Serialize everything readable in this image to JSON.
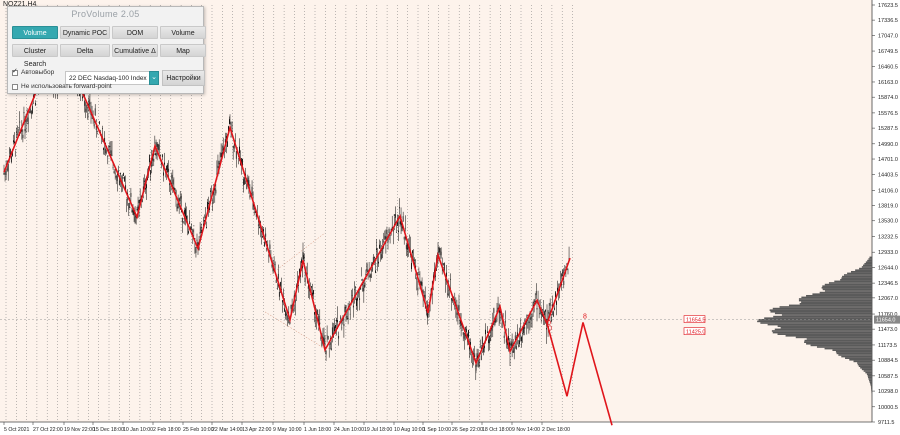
{
  "symbol": "NQZ21,H4",
  "panel": {
    "title": "ProVolume 2.05",
    "buttons": [
      "Volume Profile",
      "Dynamic POC",
      "DOM",
      "Volume",
      "Cluster Search",
      "Delta",
      "Cumulative Δ",
      "Map"
    ],
    "active_button": "Volume Profile",
    "auto_select_label": "Автовыбор",
    "auto_select_checked": true,
    "instrument": "22 DEC Nasdaq-100 Index",
    "settings_label": "Настройки",
    "forward_point_label": "Не использовать forward-point",
    "forward_point_checked": false
  },
  "chart_data": {
    "type": "line",
    "title": "",
    "price_labels": [
      "17623.5",
      "17336.5",
      "17047.0",
      "16749.5",
      "16460.5",
      "16163.0",
      "15874.0",
      "15576.5",
      "15287.5",
      "14990.0",
      "14701.0",
      "14403.5",
      "14106.0",
      "13819.0",
      "13530.0",
      "13232.5",
      "12933.0",
      "12644.0",
      "12346.5",
      "12067.0",
      "11760.0",
      "11473.0",
      "11173.5",
      "10884.5",
      "10587.5",
      "10298.0",
      "10000.5",
      "9711.5"
    ],
    "ylim": [
      9711.5,
      17623.5
    ],
    "date_labels": [
      "5 Oct 2021",
      "27 Oct 22:00",
      "19 Nov 22:00",
      "15 Dec 18:00",
      "10 Jan 10:00",
      "2 Feb 18:00",
      "25 Feb 10:00",
      "22 Mar 14:00",
      "13 Apr 22:00",
      "9 May 10:00",
      "1 Jun 18:00",
      "24 Jun 10:00",
      "19 Jul 18:00",
      "10 Aug 10:00",
      "1 Sep 10:00",
      "26 Sep 22:00",
      "18 Oct 18:00",
      "9 Nov 14:00",
      "2 Dec 18:00"
    ],
    "current_price": "11654.0",
    "level_labels": [
      "11654.5",
      "11425.0"
    ],
    "zigzag": [
      {
        "date": "5 Oct 2021",
        "price": 14450
      },
      {
        "date": "Nov 2021",
        "price": 16400
      },
      {
        "date": "Nov 2021",
        "price": 16120
      },
      {
        "date": "Dec 2021",
        "price": 16500
      },
      {
        "date": "Jan 2022",
        "price": 13600
      },
      {
        "date": "Feb 2022",
        "price": 14950
      },
      {
        "date": "Feb 2022",
        "price": 13000
      },
      {
        "date": "Mar 2022",
        "price": 15300
      },
      {
        "date": "May 2022",
        "price": 11650
      },
      {
        "date": "May 2022",
        "price": 12780
      },
      {
        "date": "Jun 2022",
        "price": 11080
      },
      {
        "date": "Aug 2022",
        "price": 13620
      },
      {
        "date": "Sep 2022",
        "price": 11780
      },
      {
        "date": "Sep 2022",
        "price": 12880
      },
      {
        "date": "Oct 2022",
        "price": 10830
      },
      {
        "date": "Nov 2022",
        "price": 11900
      },
      {
        "date": "Nov 2022",
        "price": 11050
      },
      {
        "date": "Dec 2022",
        "price": 12020
      },
      {
        "date": "Dec 2022",
        "price": 11580
      },
      {
        "date": "Dec 2022",
        "price": 12820
      }
    ],
    "projection": [
      {
        "date": "Dec 2022",
        "price": 11580
      },
      {
        "date": "Jan 2023",
        "price": 10200
      },
      {
        "date": "Jan 2023",
        "price": 11600
      },
      {
        "date": "Feb 2023",
        "price": 9650
      }
    ],
    "markers": [
      "0",
      "0",
      "8"
    ],
    "colors": {
      "background": "#fdf3ec",
      "zigzag": "#e0151b",
      "candles": "#000000",
      "profile": "#5a5a5a",
      "accent": "#35a8b0",
      "current_price_bg": "#888888",
      "level_label": "#e0151b"
    }
  }
}
